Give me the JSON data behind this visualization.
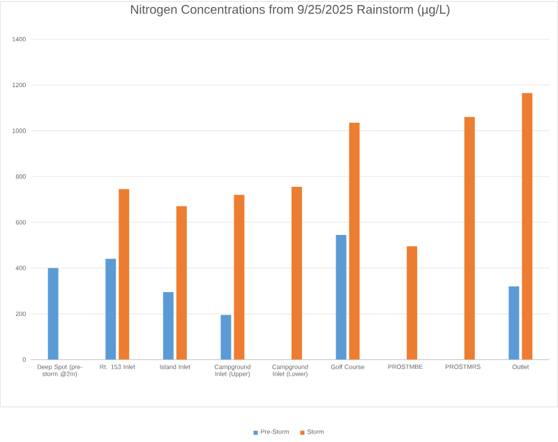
{
  "chart_data": {
    "type": "bar",
    "title": "Nitrogen Concentrations from 9/25/2025 Rainstorm (µg/L)",
    "categories": [
      "Deep Spot (pre-storm @2m)",
      "Rt. 153 Inlet",
      "Island Inlet",
      "Campground Inlet (Upper)",
      "Campground Inlet (Lower)",
      "Golf Course",
      "PROSTMBE",
      "PROSTMRS",
      "Outlet"
    ],
    "series": [
      {
        "name": "Pre-Storm",
        "color": "#5b9bd5",
        "values": [
          400,
          440,
          295,
          195,
          null,
          545,
          null,
          null,
          320
        ]
      },
      {
        "name": "Storm",
        "color": "#ed7d31",
        "values": [
          null,
          745,
          670,
          720,
          755,
          1035,
          495,
          1060,
          1165
        ]
      }
    ],
    "ylim": [
      0,
      1400
    ],
    "yticks": [
      0,
      200,
      400,
      600,
      800,
      1000,
      1200,
      1400
    ],
    "grid": "y",
    "legend": "bottom"
  }
}
